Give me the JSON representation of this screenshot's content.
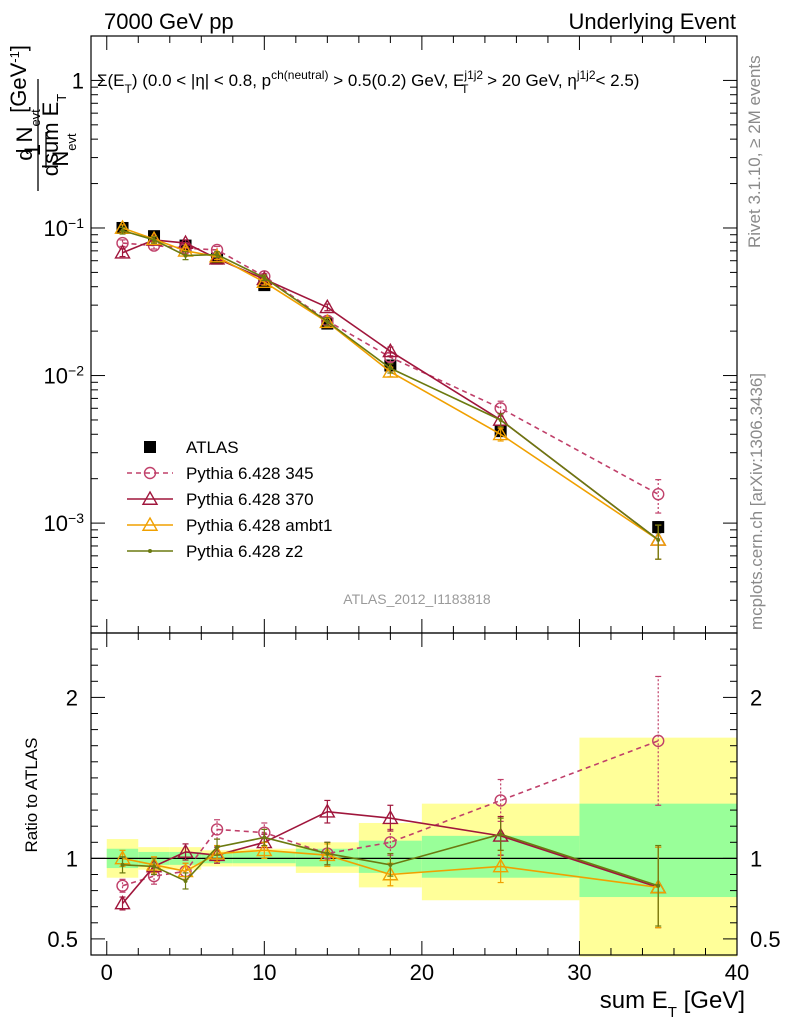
{
  "header": {
    "left": "7000 GeV pp",
    "right": "Underlying Event"
  },
  "cuts_label": "Σ(E_T) (0.0 < |η| < 0.8, p^ch(neutral) > 0.5(0.2) GeV, E_T^j1j2 > 20 GeV, η^j1j2 < 2.5)",
  "side_labels": {
    "rivet": "Rivet 3.1.10, ≥ 2M events",
    "mcplots": "mcplots.cern.ch [arXiv:1306.3436]"
  },
  "analysis_id": "ATLAS_2012_I1183818",
  "main_ylabel": "1/N_evt dN_evt/dsum E_T [GeV⁻¹]",
  "ratio_ylabel": "Ratio to ATLAS",
  "xlabel": "sum E_T [GeV]",
  "chart_data": [
    {
      "type": "scatter",
      "panel": "main",
      "yscale": "log",
      "xlim": [
        -1,
        40
      ],
      "ylim": [
        0.00018,
        2.0
      ],
      "yticks_labeled": [
        "10^-3",
        "10^-2",
        "10^-1",
        "1"
      ],
      "x": [
        1,
        3,
        5,
        7,
        10,
        14,
        18,
        25,
        35
      ],
      "series": [
        {
          "name": "ATLAS",
          "color": "#000000",
          "marker": "square",
          "values": [
            0.1,
            0.088,
            0.076,
            0.062,
            0.041,
            0.0225,
            0.0117,
            0.0042,
            0.00094
          ],
          "errors": [
            0.004,
            0.003,
            0.003,
            0.002,
            0.0015,
            0.001,
            0.0006,
            0.00025,
            8e-05
          ]
        },
        {
          "name": "Pythia 6.428 345",
          "color": "#c0406a",
          "marker": "open-circle",
          "dash": true,
          "values": [
            0.079,
            0.076,
            0.073,
            0.071,
            0.047,
            0.0235,
            0.0133,
            0.006,
            0.00157
          ],
          "errors": [
            0.004,
            0.004,
            0.004,
            0.004,
            0.002,
            0.0015,
            0.0009,
            0.0007,
            0.0004
          ]
        },
        {
          "name": "Pythia 6.428 370",
          "color": "#a0163c",
          "marker": "open-triangle",
          "dash": false,
          "values": [
            0.068,
            0.083,
            0.079,
            0.062,
            0.045,
            0.029,
            0.0146,
            0.005,
            0.00077
          ],
          "errors": [
            0.004,
            0.004,
            0.004,
            0.003,
            0.002,
            0.0015,
            0.001,
            0.0005,
            0.0002
          ]
        },
        {
          "name": "Pythia 6.428 ambt1",
          "color": "#f0a000",
          "marker": "open-triangle",
          "dash": false,
          "values": [
            0.1,
            0.084,
            0.07,
            0.064,
            0.043,
            0.023,
            0.0106,
            0.004,
            0.00077
          ],
          "errors": [
            0.005,
            0.004,
            0.004,
            0.003,
            0.002,
            0.0015,
            0.0008,
            0.0004,
            0.0002
          ]
        },
        {
          "name": "Pythia 6.428 z2",
          "color": "#6b7a10",
          "marker": "dot",
          "dash": false,
          "values": [
            0.096,
            0.083,
            0.065,
            0.066,
            0.046,
            0.0232,
            0.0112,
            0.005,
            0.00077
          ],
          "errors": [
            0.005,
            0.004,
            0.004,
            0.003,
            0.002,
            0.0015,
            0.0008,
            0.0005,
            0.0002
          ]
        }
      ]
    },
    {
      "type": "line",
      "panel": "ratio",
      "xlim": [
        -1,
        40
      ],
      "ylim": [
        0.4,
        2.4
      ],
      "yticks": [
        0.5,
        1,
        2
      ],
      "xticks": [
        0,
        10,
        20,
        30,
        40
      ],
      "reference_line": 1,
      "bands": [
        {
          "x0": 0,
          "x1": 2,
          "stat": [
            0.94,
            1.06
          ],
          "total": [
            0.88,
            1.12
          ]
        },
        {
          "x0": 2,
          "x1": 4,
          "stat": [
            0.96,
            1.04
          ],
          "total": [
            0.93,
            1.07
          ]
        },
        {
          "x0": 4,
          "x1": 6,
          "stat": [
            0.96,
            1.04
          ],
          "total": [
            0.93,
            1.07
          ]
        },
        {
          "x0": 6,
          "x1": 8,
          "stat": [
            0.97,
            1.03
          ],
          "total": [
            0.95,
            1.05
          ]
        },
        {
          "x0": 8,
          "x1": 12,
          "stat": [
            0.97,
            1.04
          ],
          "total": [
            0.95,
            1.06
          ]
        },
        {
          "x0": 12,
          "x1": 16,
          "stat": [
            0.95,
            1.06
          ],
          "total": [
            0.91,
            1.1
          ]
        },
        {
          "x0": 16,
          "x1": 20,
          "stat": [
            0.91,
            1.11
          ],
          "total": [
            0.82,
            1.22
          ]
        },
        {
          "x0": 20,
          "x1": 30,
          "stat": [
            0.88,
            1.14
          ],
          "total": [
            0.74,
            1.34
          ]
        },
        {
          "x0": 30,
          "x1": 40,
          "stat": [
            0.76,
            1.34
          ],
          "total": [
            0.39,
            1.75
          ]
        }
      ],
      "x": [
        1,
        3,
        5,
        7,
        10,
        14,
        18,
        25,
        35
      ],
      "series": [
        {
          "name": "Pythia 6.428 345",
          "color": "#c0406a",
          "marker": "open-circle",
          "dash": true,
          "values": [
            0.83,
            0.89,
            0.92,
            1.18,
            1.16,
            1.03,
            1.1,
            1.36,
            1.73
          ],
          "errors": [
            0.04,
            0.05,
            0.05,
            0.06,
            0.06,
            0.07,
            0.08,
            0.13,
            0.4
          ]
        },
        {
          "name": "Pythia 6.428 370",
          "color": "#a0163c",
          "marker": "open-triangle",
          "dash": false,
          "values": [
            0.72,
            0.95,
            1.04,
            1.02,
            1.1,
            1.29,
            1.25,
            1.14,
            0.82
          ],
          "errors": [
            0.04,
            0.05,
            0.05,
            0.05,
            0.05,
            0.07,
            0.08,
            0.12,
            0.25
          ]
        },
        {
          "name": "Pythia 6.428 ambt1",
          "color": "#f0a000",
          "marker": "open-triangle",
          "dash": false,
          "values": [
            1.0,
            0.96,
            0.92,
            1.03,
            1.05,
            1.02,
            0.9,
            0.95,
            0.82
          ],
          "errors": [
            0.05,
            0.05,
            0.05,
            0.05,
            0.05,
            0.07,
            0.07,
            0.1,
            0.25
          ]
        },
        {
          "name": "Pythia 6.428 z2",
          "color": "#6b7a10",
          "marker": "dot",
          "dash": false,
          "values": [
            0.96,
            0.95,
            0.86,
            1.07,
            1.13,
            1.03,
            0.96,
            1.15,
            0.83
          ],
          "errors": [
            0.05,
            0.05,
            0.05,
            0.05,
            0.05,
            0.07,
            0.07,
            0.1,
            0.25
          ]
        }
      ]
    }
  ]
}
